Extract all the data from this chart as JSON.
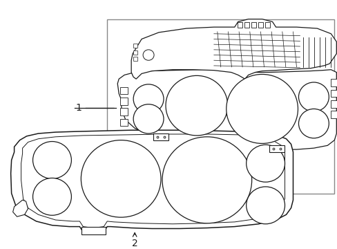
{
  "background_color": "#ffffff",
  "line_color": "#1a1a1a",
  "panel_color": "#d0d0d0",
  "fig_width": 4.89,
  "fig_height": 3.6,
  "dpi": 100,
  "label1": "1",
  "label2": "2"
}
